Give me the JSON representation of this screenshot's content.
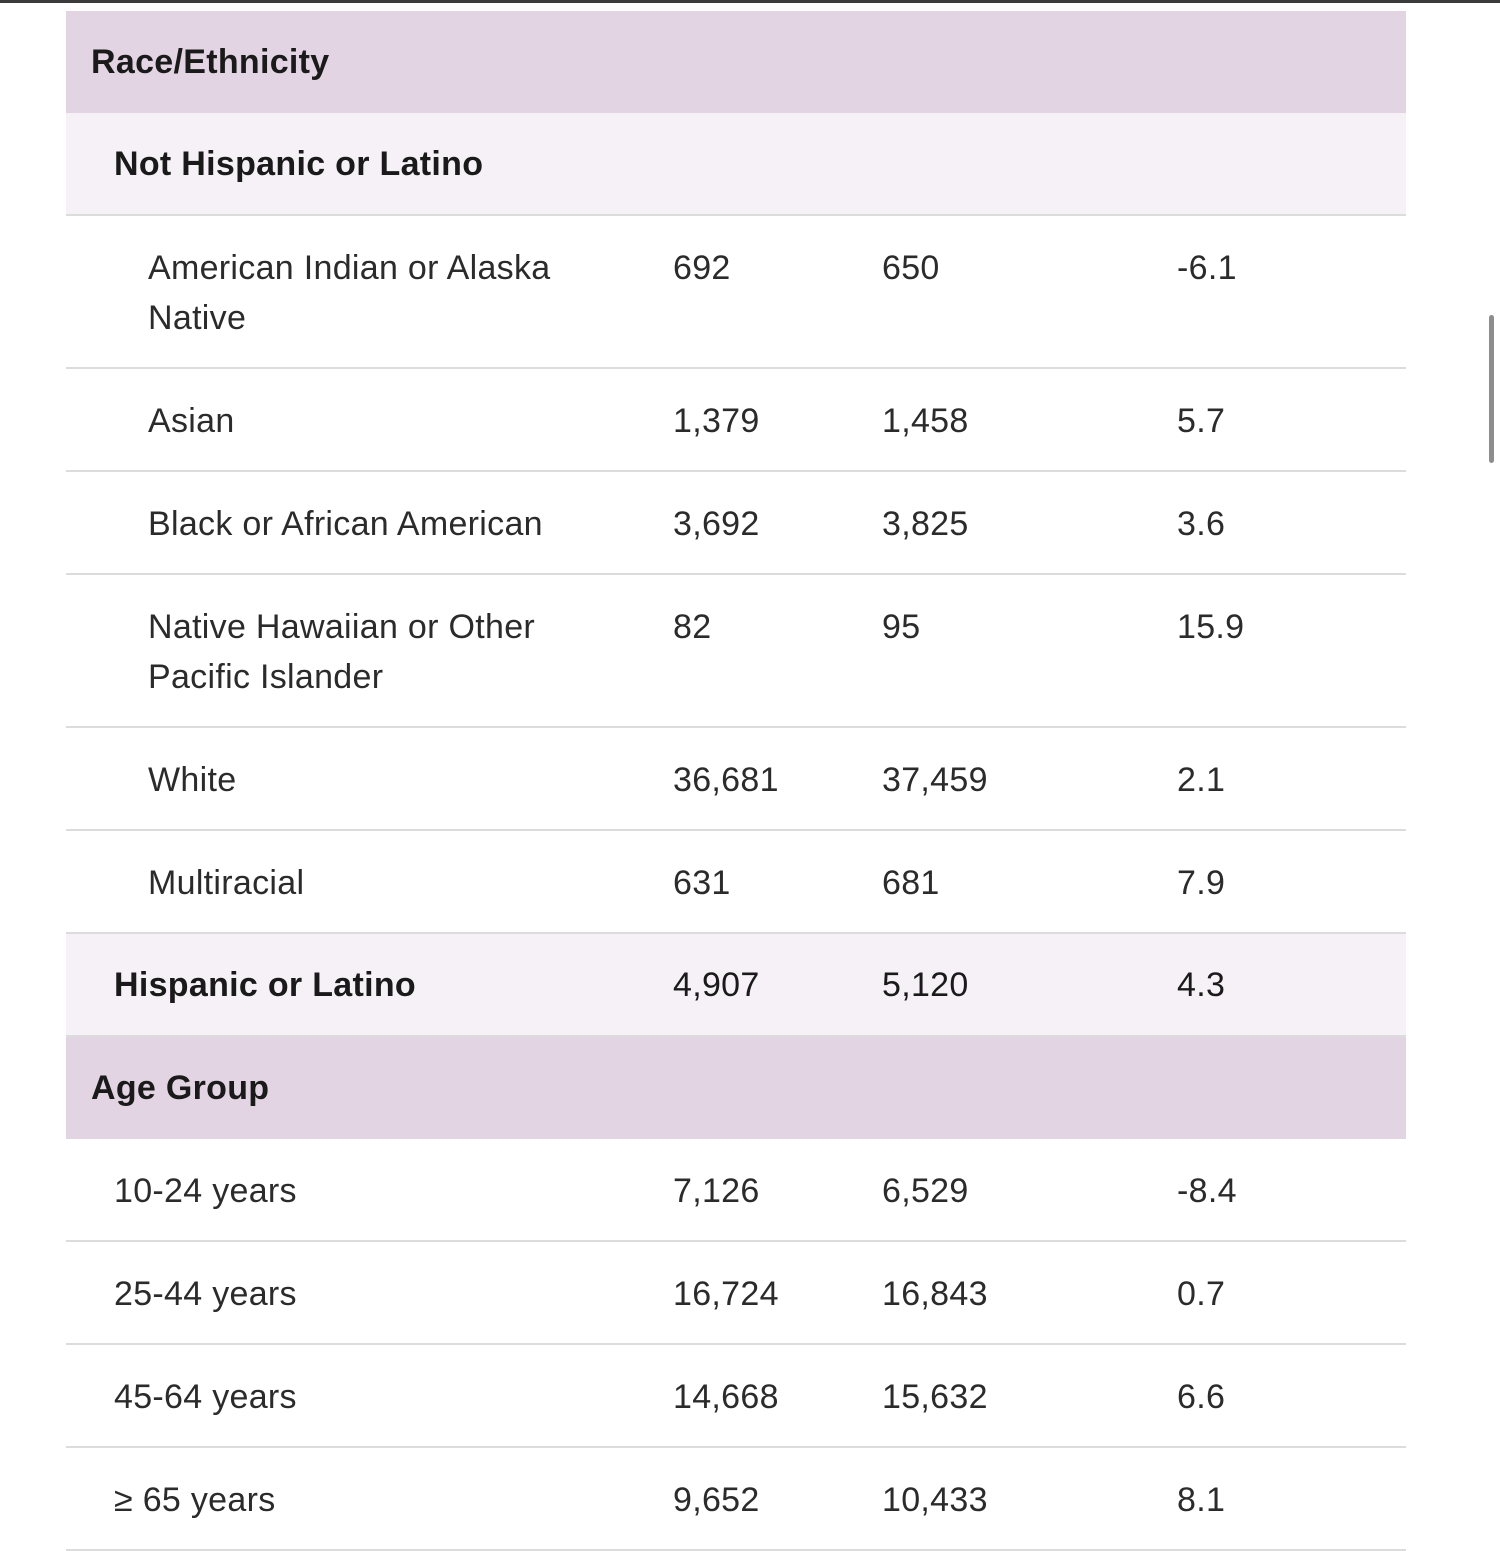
{
  "sections": {
    "race_ethnicity": {
      "title": "Race/Ethnicity",
      "not_hispanic": {
        "label": "Not Hispanic or Latino",
        "rows": [
          {
            "label": "American Indian or Alaska Native",
            "v1": "692",
            "v2": "650",
            "v3": "-6.1"
          },
          {
            "label": "Asian",
            "v1": "1,379",
            "v2": "1,458",
            "v3": "5.7"
          },
          {
            "label": "Black or African American",
            "v1": "3,692",
            "v2": "3,825",
            "v3": "3.6"
          },
          {
            "label": "Native Hawaiian or Other Pacific Islander",
            "v1": "82",
            "v2": "95",
            "v3": "15.9"
          },
          {
            "label": "White",
            "v1": "36,681",
            "v2": "37,459",
            "v3": "2.1"
          },
          {
            "label": "Multiracial",
            "v1": "631",
            "v2": "681",
            "v3": "7.9"
          }
        ]
      },
      "hispanic": {
        "label": "Hispanic or Latino",
        "v1": "4,907",
        "v2": "5,120",
        "v3": "4.3"
      }
    },
    "age_group": {
      "title": "Age Group",
      "rows": [
        {
          "label": "10-24 years",
          "v1": "7,126",
          "v2": "6,529",
          "v3": "-8.4"
        },
        {
          "label": "25-44 years",
          "v1": "16,724",
          "v2": "16,843",
          "v3": "0.7"
        },
        {
          "label": "45-64 years",
          "v1": "14,668",
          "v2": "15,632",
          "v3": "6.6"
        },
        {
          "label": "≥ 65 years",
          "v1": "9,652",
          "v2": "10,433",
          "v3": "8.1"
        }
      ]
    }
  },
  "colors": {
    "section_bg": "#e3d4e4",
    "subsection_bg": "#f5f1f6",
    "divider": "#dcdcdc"
  }
}
